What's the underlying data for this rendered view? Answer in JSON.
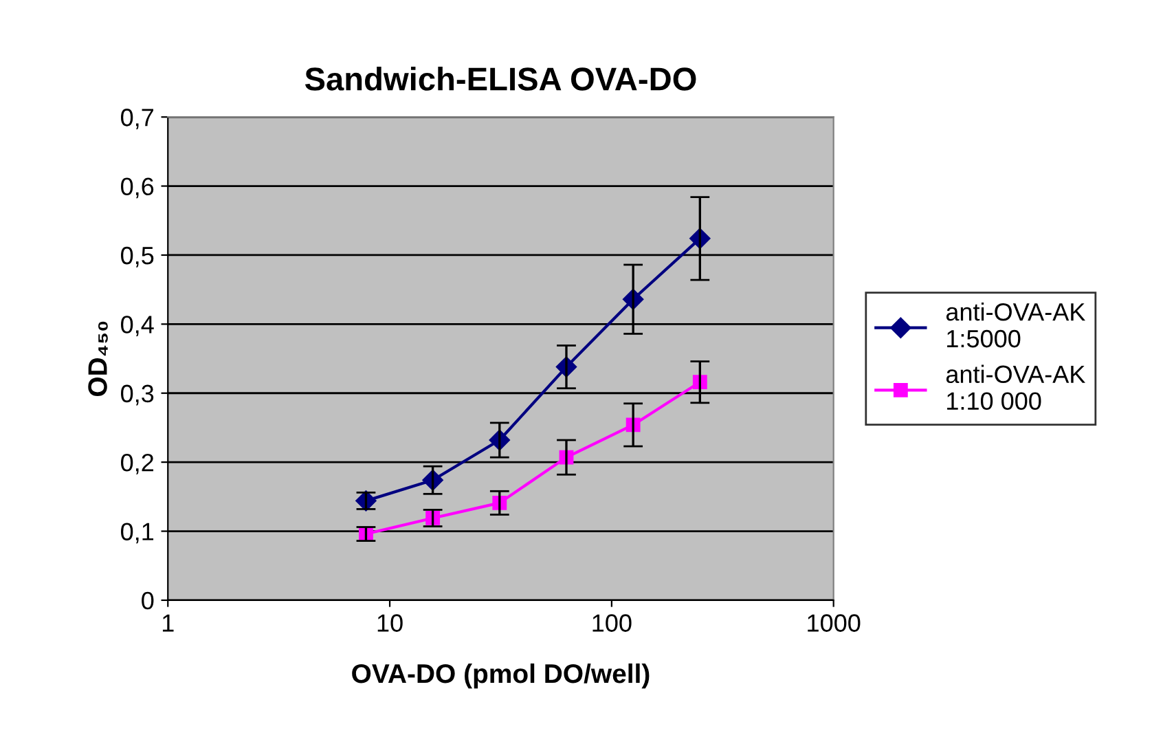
{
  "chart_data": {
    "type": "line",
    "title": "Sandwich-ELISA OVA-DO",
    "xlabel": "OVA-DO (pmol DO/well)",
    "ylabel": "OD₄₅₀",
    "x": [
      7.8125,
      15.625,
      31.25,
      62.5,
      125,
      250
    ],
    "series": [
      {
        "name": "anti-OVA-AK\n1:5000",
        "color": "#000080",
        "marker": "diamond",
        "values": [
          0.144,
          0.174,
          0.232,
          0.338,
          0.436,
          0.524
        ],
        "errors": [
          0.012,
          0.02,
          0.025,
          0.031,
          0.05,
          0.06
        ]
      },
      {
        "name": "anti-OVA-AK\n1:10 000",
        "color": "#ff00ff",
        "marker": "square",
        "values": [
          0.096,
          0.119,
          0.141,
          0.207,
          0.254,
          0.316
        ],
        "errors": [
          0.01,
          0.012,
          0.017,
          0.025,
          0.031,
          0.03
        ]
      }
    ],
    "log": "x",
    "xlim": [
      1,
      1000
    ],
    "xticks": [
      1,
      10,
      100,
      1000
    ],
    "ylim": [
      0,
      0.7
    ],
    "yticks": [
      0,
      {
        "value": 0.1,
        "label": "0,1"
      },
      {
        "value": 0.2,
        "label": "0,2"
      },
      {
        "value": 0.3,
        "label": "0,3"
      },
      {
        "value": 0.4,
        "label": "0,4"
      },
      {
        "value": 0.5,
        "label": "0,5"
      },
      {
        "value": 0.6,
        "label": "0,6"
      },
      {
        "value": 0.7,
        "label": "0,7"
      }
    ],
    "grid": "y",
    "legend": "right",
    "line_style": "solid"
  }
}
